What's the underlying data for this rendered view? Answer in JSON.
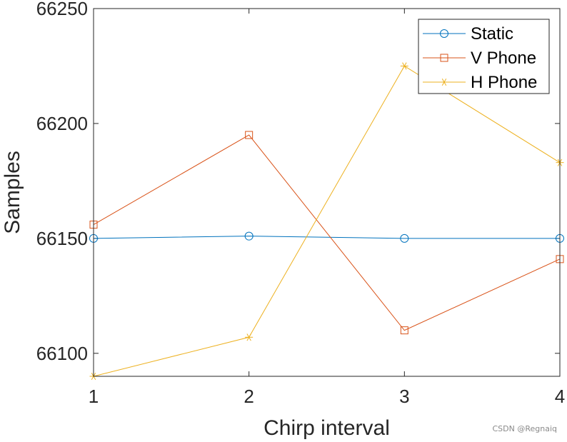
{
  "chart_data": {
    "type": "line",
    "title": "",
    "xlabel": "Chirp interval",
    "ylabel": "Samples",
    "x": [
      1,
      2,
      3,
      4
    ],
    "xlim": [
      1,
      4
    ],
    "ylim": [
      66090,
      66250
    ],
    "xticks": [
      1,
      2,
      3,
      4
    ],
    "yticks": [
      66100,
      66150,
      66200,
      66250
    ],
    "grid": false,
    "legend_location": "top-right",
    "series": [
      {
        "name": "Static",
        "values": [
          66150,
          66151,
          66150,
          66150
        ],
        "color": "#0072BD",
        "marker": "circle"
      },
      {
        "name": "V Phone",
        "values": [
          66156,
          66195,
          66110,
          66141
        ],
        "color": "#D95319",
        "marker": "square"
      },
      {
        "name": "H Phone",
        "values": [
          66090,
          66107,
          66225,
          66183
        ],
        "color": "#EDB120",
        "marker": "asterisk"
      }
    ]
  },
  "watermark": "CSDN @Regnaiq"
}
